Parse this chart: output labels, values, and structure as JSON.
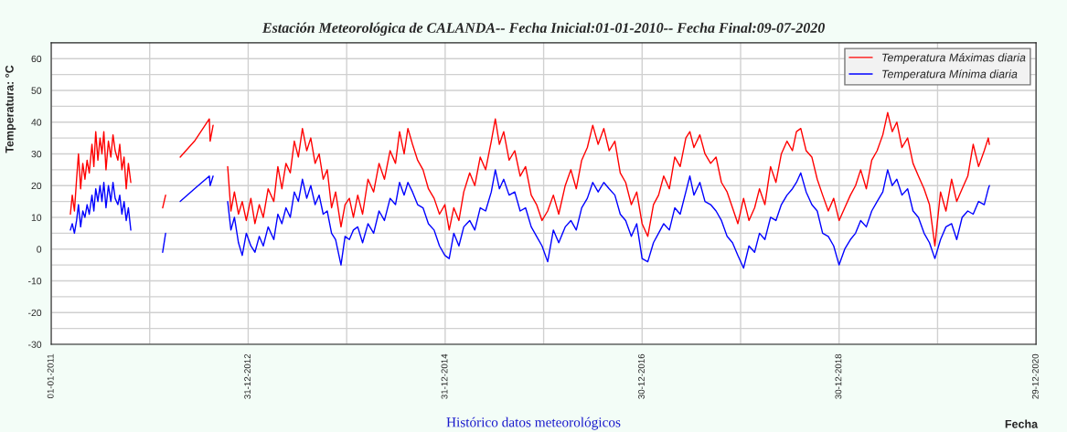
{
  "chart_data": {
    "type": "line",
    "title": "Estación Meteorológica de CALANDA-- Fecha Inicial:01-01-2010-- Fecha Final:09-07-2020",
    "xlabel": "Fecha",
    "ylabel": "Temperatura: °C",
    "annotations": [
      "Histórico datos meteorológicos"
    ],
    "x": [
      "2011-03-13",
      "2011-03-20",
      "2011-03-28",
      "2011-04-05",
      "2011-04-12",
      "2011-04-20",
      "2011-04-28",
      "2011-05-06",
      "2011-05-14",
      "2011-05-22",
      "2011-06-01",
      "2011-06-08",
      "2011-06-15",
      "2011-06-23",
      "2011-07-01",
      "2011-07-08",
      "2011-07-15",
      "2011-07-23",
      "2011-08-01",
      "2011-08-10",
      "2011-08-18",
      "2011-08-26",
      "2011-09-05",
      "2011-09-12",
      "2011-09-20",
      "2011-09-28",
      "2011-10-06",
      "2011-10-14",
      "2011-10-23",
      "2011-12-01",
      "2012-02-18",
      "2012-02-29",
      "2012-03-20",
      "2012-04-23",
      "2012-06-15",
      "2012-08-09",
      "2012-08-12",
      "2012-08-23",
      "2012-09-20",
      "2012-10-16",
      "2012-10-28",
      "2012-11-10",
      "2012-11-25",
      "2012-12-09",
      "2012-12-24",
      "2013-01-10",
      "2013-01-25",
      "2013-02-10",
      "2013-02-25",
      "2013-03-15",
      "2013-04-05",
      "2013-04-20",
      "2013-05-05",
      "2013-05-20",
      "2013-06-05",
      "2013-06-20",
      "2013-07-05",
      "2013-07-20",
      "2013-08-05",
      "2013-08-20",
      "2013-09-05",
      "2013-09-20",
      "2013-10-05",
      "2013-10-20",
      "2013-11-05",
      "2013-11-20",
      "2013-12-10",
      "2013-12-25",
      "2014-01-10",
      "2014-01-25",
      "2014-02-10",
      "2014-02-28",
      "2014-03-20",
      "2014-04-10",
      "2014-04-30",
      "2014-05-20",
      "2014-06-10",
      "2014-06-30",
      "2014-07-15",
      "2014-08-01",
      "2014-08-15",
      "2014-09-01",
      "2014-09-20",
      "2014-10-10",
      "2014-10-30",
      "2014-11-20",
      "2014-12-10",
      "2014-12-30",
      "2015-01-15",
      "2015-02-01",
      "2015-02-20",
      "2015-03-10",
      "2015-04-01",
      "2015-04-20",
      "2015-05-10",
      "2015-05-30",
      "2015-06-20",
      "2015-07-05",
      "2015-07-20",
      "2015-08-05",
      "2015-08-25",
      "2015-09-15",
      "2015-10-05",
      "2015-10-25",
      "2015-11-15",
      "2015-12-05",
      "2015-12-25",
      "2016-01-15",
      "2016-02-05",
      "2016-02-25",
      "2016-03-20",
      "2016-04-10",
      "2016-04-30",
      "2016-05-20",
      "2016-06-10",
      "2016-06-30",
      "2016-07-20",
      "2016-08-10",
      "2016-08-30",
      "2016-09-20",
      "2016-10-10",
      "2016-10-30",
      "2016-11-20",
      "2016-12-10",
      "2016-12-30",
      "2017-01-20",
      "2017-02-10",
      "2017-03-01",
      "2017-03-20",
      "2017-04-10",
      "2017-04-30",
      "2017-05-20",
      "2017-06-10",
      "2017-06-25",
      "2017-07-10",
      "2017-08-01",
      "2017-08-20",
      "2017-09-10",
      "2017-09-30",
      "2017-10-20",
      "2017-11-10",
      "2017-11-30",
      "2017-12-20",
      "2018-01-10",
      "2018-01-30",
      "2018-02-20",
      "2018-03-10",
      "2018-03-30",
      "2018-04-20",
      "2018-05-10",
      "2018-05-30",
      "2018-06-20",
      "2018-07-10",
      "2018-07-25",
      "2018-08-10",
      "2018-08-30",
      "2018-09-20",
      "2018-10-10",
      "2018-10-30",
      "2018-11-20",
      "2018-12-10",
      "2018-12-30",
      "2019-01-20",
      "2019-02-10",
      "2019-03-01",
      "2019-03-20",
      "2019-04-10",
      "2019-04-30",
      "2019-05-20",
      "2019-06-10",
      "2019-06-28",
      "2019-07-15",
      "2019-08-01",
      "2019-08-20",
      "2019-09-10",
      "2019-09-30",
      "2019-10-20",
      "2019-11-10",
      "2019-11-30",
      "2019-12-20",
      "2020-01-10",
      "2020-01-30",
      "2020-02-20",
      "2020-03-10",
      "2020-03-30",
      "2020-04-20",
      "2020-05-10",
      "2020-05-30",
      "2020-06-20",
      "2020-07-05",
      "2020-07-09"
    ],
    "series": [
      {
        "name": "Temperatura Máximas diaria",
        "color": "#ff0000",
        "values": [
          11,
          17,
          12,
          22,
          30,
          19,
          27,
          22,
          28,
          24,
          33,
          26,
          37,
          28,
          35,
          30,
          37,
          25,
          34,
          29,
          36,
          31,
          28,
          33,
          25,
          29,
          19,
          27,
          21,
          null,
          13,
          17,
          null,
          29,
          34,
          41,
          34,
          39,
          null,
          26,
          12,
          18,
          11,
          15,
          9,
          16,
          8,
          14,
          10,
          19,
          15,
          26,
          19,
          27,
          24,
          34,
          29,
          38,
          31,
          35,
          27,
          30,
          22,
          25,
          13,
          18,
          7,
          14,
          16,
          10,
          17,
          11,
          22,
          18,
          27,
          22,
          31,
          27,
          37,
          30,
          38,
          33,
          28,
          25,
          19,
          16,
          11,
          14,
          6,
          13,
          9,
          18,
          24,
          20,
          29,
          25,
          34,
          41,
          33,
          37,
          28,
          31,
          23,
          26,
          17,
          14,
          9,
          12,
          17,
          11,
          20,
          25,
          19,
          28,
          32,
          39,
          33,
          38,
          31,
          34,
          24,
          21,
          14,
          18,
          8,
          4,
          14,
          17,
          23,
          19,
          29,
          26,
          35,
          37,
          32,
          36,
          30,
          27,
          29,
          21,
          18,
          13,
          8,
          16,
          9,
          13,
          19,
          14,
          26,
          21,
          30,
          34,
          31,
          37,
          38,
          31,
          29,
          22,
          17,
          12,
          16,
          9,
          13,
          17,
          20,
          25,
          19,
          28,
          31,
          36,
          43,
          37,
          40,
          32,
          35,
          27,
          23,
          19,
          14,
          1,
          18,
          12,
          22,
          15,
          19,
          23,
          33,
          26,
          31,
          35,
          33
        ]
      },
      {
        "name": "Temperatura Mínima diaria",
        "color": "#0000ff",
        "values": [
          6,
          8,
          5,
          9,
          14,
          7,
          12,
          10,
          14,
          11,
          17,
          12,
          19,
          15,
          20,
          15,
          21,
          13,
          20,
          15,
          21,
          16,
          14,
          17,
          11,
          15,
          9,
          13,
          6,
          null,
          -1,
          5,
          null,
          15,
          19,
          23,
          20,
          23,
          null,
          15,
          6,
          10,
          2,
          -2,
          5,
          1,
          -1,
          4,
          1,
          7,
          3,
          11,
          8,
          13,
          10,
          18,
          15,
          22,
          16,
          20,
          14,
          17,
          11,
          12,
          5,
          3,
          -5,
          4,
          3,
          6,
          7,
          2,
          8,
          5,
          12,
          9,
          16,
          14,
          21,
          17,
          21,
          18,
          14,
          13,
          8,
          6,
          1,
          -2,
          -3,
          5,
          1,
          7,
          9,
          6,
          13,
          12,
          18,
          25,
          19,
          22,
          17,
          18,
          12,
          13,
          7,
          4,
          1,
          -4,
          6,
          2,
          7,
          9,
          6,
          13,
          16,
          21,
          18,
          21,
          19,
          17,
          11,
          9,
          4,
          8,
          -3,
          -4,
          2,
          5,
          8,
          6,
          13,
          11,
          18,
          23,
          17,
          21,
          15,
          14,
          12,
          9,
          4,
          2,
          -2,
          -6,
          1,
          -1,
          5,
          3,
          10,
          9,
          14,
          17,
          19,
          21,
          24,
          18,
          14,
          12,
          5,
          4,
          1,
          -5,
          0,
          3,
          5,
          9,
          7,
          12,
          15,
          18,
          25,
          20,
          22,
          17,
          19,
          12,
          10,
          5,
          2,
          -3,
          3,
          7,
          8,
          3,
          10,
          12,
          11,
          15,
          14,
          19,
          20
        ]
      }
    ],
    "xlim": [
      "2011-01-01",
      "2020-12-29"
    ],
    "xticks": [
      {
        "value": "2011-01-01",
        "label": "01-01-2011"
      },
      {
        "value": "2012-01-01",
        "label": null
      },
      {
        "value": "2012-12-31",
        "label": "31-12-2012"
      },
      {
        "value": "2013-12-31",
        "label": null
      },
      {
        "value": "2014-12-31",
        "label": "31-12-2014"
      },
      {
        "value": "2015-12-31",
        "label": null
      },
      {
        "value": "2016-12-30",
        "label": "30-12-2016"
      },
      {
        "value": "2017-12-30",
        "label": null
      },
      {
        "value": "2018-12-30",
        "label": "30-12-2018"
      },
      {
        "value": "2019-12-30",
        "label": null
      },
      {
        "value": "2020-12-29",
        "label": "29-12-2020"
      }
    ],
    "ylim": [
      -30,
      65
    ],
    "yticks": [
      -30,
      {
        "value": -25,
        "label": null
      },
      -20,
      {
        "value": -15,
        "label": null
      },
      -10,
      {
        "value": -5,
        "label": null
      },
      0,
      {
        "value": 5,
        "label": null
      },
      10,
      {
        "value": 15,
        "label": null
      },
      20,
      {
        "value": 25,
        "label": null
      },
      30,
      {
        "value": 35,
        "label": null
      },
      40,
      {
        "value": 45,
        "label": null
      },
      50,
      {
        "value": 55,
        "label": null
      },
      60
    ],
    "grid": true,
    "legend": "top right",
    "marker": "none",
    "line_style": "solid"
  }
}
